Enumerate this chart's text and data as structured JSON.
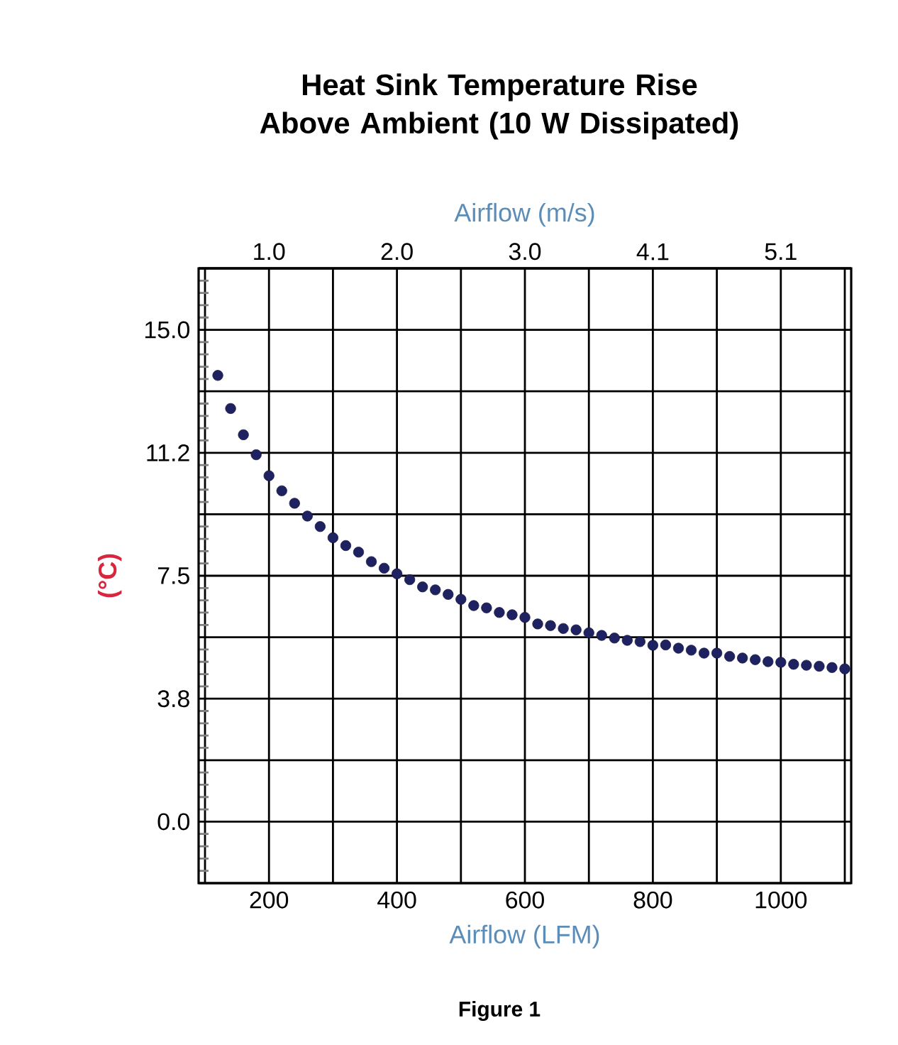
{
  "chart_data": {
    "type": "scatter",
    "title": "Heat Sink Temperature Rise Above Ambient (10 W Dissipated)",
    "xlabel": "Airflow (LFM)",
    "x2label": "Airflow (m/s)",
    "ylabel": "(°C)",
    "annotations": [
      "Figure 1"
    ],
    "x": [
      120,
      140,
      160,
      180,
      200,
      220,
      240,
      260,
      280,
      300,
      320,
      340,
      360,
      380,
      400,
      420,
      440,
      460,
      480,
      500,
      520,
      540,
      560,
      580,
      600,
      620,
      640,
      660,
      680,
      700,
      720,
      740,
      760,
      780,
      800,
      820,
      840,
      860,
      880,
      900,
      920,
      940,
      960,
      980,
      1000,
      1020,
      1040,
      1060,
      1080,
      1100
    ],
    "series": [
      {
        "color": "#1f2260",
        "values": [
          13.61,
          12.6,
          11.8,
          11.19,
          10.55,
          10.09,
          9.71,
          9.32,
          9.0,
          8.66,
          8.42,
          8.22,
          7.93,
          7.73,
          7.56,
          7.38,
          7.16,
          7.07,
          6.93,
          6.78,
          6.59,
          6.52,
          6.38,
          6.31,
          6.23,
          6.03,
          5.98,
          5.89,
          5.85,
          5.76,
          5.68,
          5.6,
          5.53,
          5.49,
          5.38,
          5.39,
          5.29,
          5.23,
          5.14,
          5.14,
          5.04,
          4.99,
          4.94,
          4.88,
          4.86,
          4.8,
          4.77,
          4.74,
          4.7,
          4.66
        ]
      }
    ],
    "xlim": [
      90,
      1110
    ],
    "xticks": [
      {
        "value": 100,
        "label": null
      },
      200,
      {
        "value": 300,
        "label": null
      },
      400,
      {
        "value": 500,
        "label": null
      },
      600,
      {
        "value": 700,
        "label": null
      },
      800,
      {
        "value": 900,
        "label": null
      },
      1000,
      {
        "value": 1100,
        "label": null
      }
    ],
    "x2lim": [
      0.4572,
      5.6388
    ],
    "x2ticks": [
      {
        "value": 1.016,
        "label": "1.0"
      },
      {
        "value": 2.032,
        "label": "2.0"
      },
      {
        "value": 3.048,
        "label": "3.0"
      },
      {
        "value": 4.064,
        "label": "4.1"
      },
      {
        "value": 5.08,
        "label": "5.1"
      }
    ],
    "ylim": [
      -1.875,
      16.875
    ],
    "yticks": [
      {
        "value": -1.875,
        "label": null
      },
      {
        "value": 0,
        "label": "0.0"
      },
      {
        "value": 1.875,
        "label": null
      },
      {
        "value": 3.75,
        "label": "3.8"
      },
      {
        "value": 5.625,
        "label": null
      },
      {
        "value": 7.5,
        "label": "7.5"
      },
      {
        "value": 9.375,
        "label": null
      },
      {
        "value": 11.25,
        "label": "11.2"
      },
      {
        "value": 13.125,
        "label": null
      },
      {
        "value": 15,
        "label": "15.0"
      },
      {
        "value": 16.875,
        "label": null
      }
    ],
    "grid": true,
    "marker": "circle"
  }
}
